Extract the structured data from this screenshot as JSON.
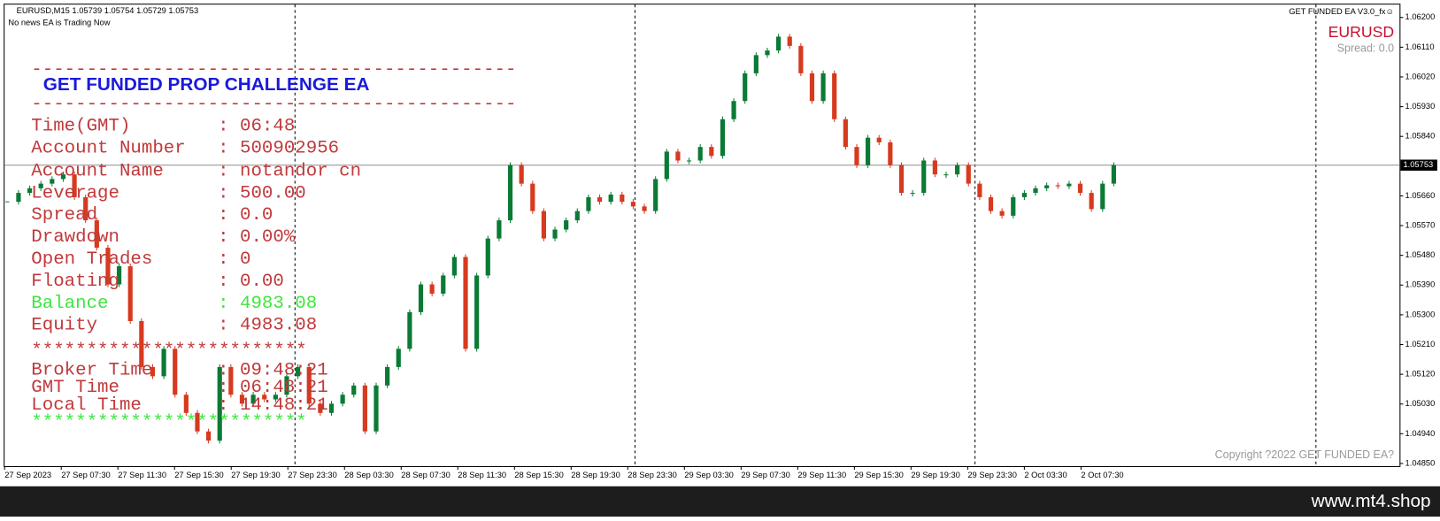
{
  "header": {
    "symbol_info": "EURUSD,M15  1.05739 1.05754 1.05729 1.05753",
    "news": "No news  EA is Trading Now",
    "ea_name": "GET FUNDED EA V3.0_fx☺",
    "symbol": "EURUSD",
    "spread": "Spread: 0.0"
  },
  "panel": {
    "separator": "--------------------------------------------",
    "title": "GET FUNDED PROP CHALLENGE EA",
    "rows": [
      [
        "Time(GMT)",
        ": 06:48"
      ],
      [
        "Account Number",
        ": 500902956"
      ],
      [
        "Account Name",
        ": notandor cn"
      ],
      [
        "Leverage",
        ": 500.00"
      ],
      [
        "Spread",
        ": 0.0"
      ],
      [
        "Drawdown",
        ": 0.00%"
      ],
      [
        "Open Trades",
        ": 0"
      ],
      [
        "Floating",
        ": 0.00"
      ],
      [
        "Balance",
        ": 4983.08"
      ],
      [
        "Equity",
        ": 4983.08"
      ]
    ],
    "stars": "*************************",
    "times": [
      [
        "Broker Time",
        ": 09:48:21"
      ],
      [
        "GMT Time",
        ": 06:48:21"
      ],
      [
        "Local Time",
        ": 14:48:21"
      ]
    ]
  },
  "chart": {
    "type": "candlestick",
    "up_color": "#0b7a35",
    "down_color": "#d63a1f",
    "ylim": [
      1.04842,
      1.06239
    ],
    "yticks": [
      {
        "value": 1.062,
        "label": "1.06200"
      },
      {
        "value": 1.0611,
        "label": "1.06110"
      },
      {
        "value": 1.0602,
        "label": "1.06020"
      },
      {
        "value": 1.0593,
        "label": "1.05930"
      },
      {
        "value": 1.0584,
        "label": "1.05840"
      },
      {
        "value": 1.0566,
        "label": "1.05660"
      },
      {
        "value": 1.0557,
        "label": "1.05570"
      },
      {
        "value": 1.0548,
        "label": "1.05480"
      },
      {
        "value": 1.0539,
        "label": "1.05390"
      },
      {
        "value": 1.053,
        "label": "1.05300"
      },
      {
        "value": 1.0521,
        "label": "1.05210"
      },
      {
        "value": 1.0512,
        "label": "1.05120"
      },
      {
        "value": 1.0503,
        "label": "1.05030"
      },
      {
        "value": 1.0494,
        "label": "1.04940"
      },
      {
        "value": 1.0485,
        "label": "1.04850"
      }
    ],
    "current_price": 1.05753,
    "categories": [
      "27 Sep 2023",
      "27 Sep 07:30",
      "27 Sep 11:30",
      "27 Sep 15:30",
      "27 Sep 19:30",
      "27 Sep 23:30",
      "28 Sep 03:30",
      "28 Sep 07:30",
      "28 Sep 11:30",
      "28 Sep 15:30",
      "28 Sep 19:30",
      "28 Sep 23:30",
      "29 Sep 03:30",
      "29 Sep 07:30",
      "29 Sep 11:30",
      "29 Sep 15:30",
      "29 Sep 19:30",
      "29 Sep 23:30",
      "2 Oct 03:30",
      "2 Oct 07:30"
    ],
    "closes": [
      1.05642,
      1.05669,
      1.05683,
      1.05697,
      1.05711,
      1.05725,
      1.05656,
      1.05586,
      1.05503,
      1.05392,
      1.05447,
      1.05281,
      1.05142,
      1.05114,
      1.05197,
      1.05058,
      1.05003,
      1.04947,
      1.04919,
      1.05142,
      1.05058,
      1.05031,
      1.05058,
      1.05044,
      1.05058,
      1.05114,
      1.05142,
      1.05031,
      1.05003,
      1.05031,
      1.05058,
      1.05086,
      1.04947,
      1.05086,
      1.05142,
      1.05197,
      1.05308,
      1.05392,
      1.05364,
      1.05419,
      1.05475,
      1.05197,
      1.05419,
      1.05531,
      1.05586,
      1.05753,
      1.05697,
      1.05614,
      1.05531,
      1.05558,
      1.05586,
      1.05614,
      1.05656,
      1.05642,
      1.05664,
      1.05642,
      1.05628,
      1.05614,
      1.05711,
      1.05794,
      1.05767,
      1.05767,
      1.05808,
      1.05781,
      1.05892,
      1.05947,
      1.06031,
      1.06086,
      1.061,
      1.06142,
      1.06114,
      1.06031,
      1.05947,
      1.06031,
      1.05892,
      1.05808,
      1.05753,
      1.05836,
      1.05822,
      1.05753,
      1.05669,
      1.05669,
      1.05767,
      1.05725,
      1.05725,
      1.05753,
      1.05697,
      1.05656,
      1.05614,
      1.056,
      1.05656,
      1.05669,
      1.05683,
      1.05692,
      1.05689,
      1.05697,
      1.05669,
      1.0562,
      1.05697,
      1.05753
    ]
  },
  "copyright": "Copyright ?2022 GET FUNDED EA?",
  "watermark": "www.mt4.shop"
}
